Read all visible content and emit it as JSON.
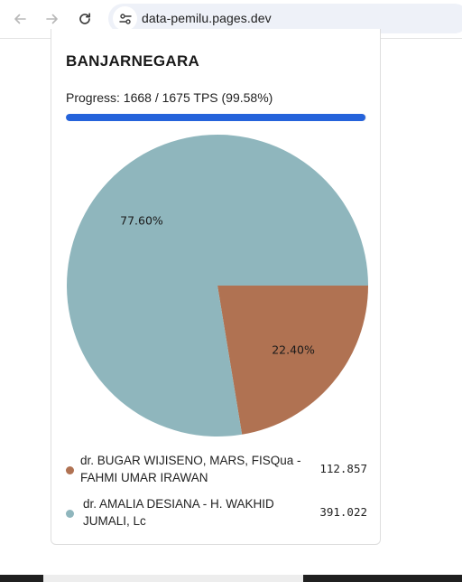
{
  "browser": {
    "url": "data-pemilu.pages.dev",
    "icons": [
      "back-arrow-icon",
      "forward-arrow-icon",
      "reload-icon",
      "site-info-icon"
    ]
  },
  "card": {
    "title": "BANJARNEGARA",
    "progress_text": "Progress: 1668 / 1675 TPS (99.58%)",
    "progress_fraction": 0.9958,
    "progress_color": "#2563db"
  },
  "candidates": [
    {
      "name": "dr. BUGAR WIJISENO, MARS, FISQua - FAHMI UMAR IRAWAN",
      "votes": "112.857",
      "color": "#b07252"
    },
    {
      "name": "dr. AMALIA DESIANA - H. WAKHID JUMALI, Lc",
      "votes": "391.022",
      "color": "#8fb6bd"
    }
  ],
  "chart_data": {
    "type": "pie",
    "categories": [
      "dr. BUGAR WIJISENO, MARS, FISQua - FAHMI UMAR IRAWAN",
      "dr. AMALIA DESIANA - H. WAKHID JUMALI, Lc"
    ],
    "values": [
      22.4,
      77.6
    ],
    "labels": [
      "22.40%",
      "77.60%"
    ],
    "colors": [
      "#b07252",
      "#8fb6bd"
    ],
    "legend_placement": "bottom"
  }
}
